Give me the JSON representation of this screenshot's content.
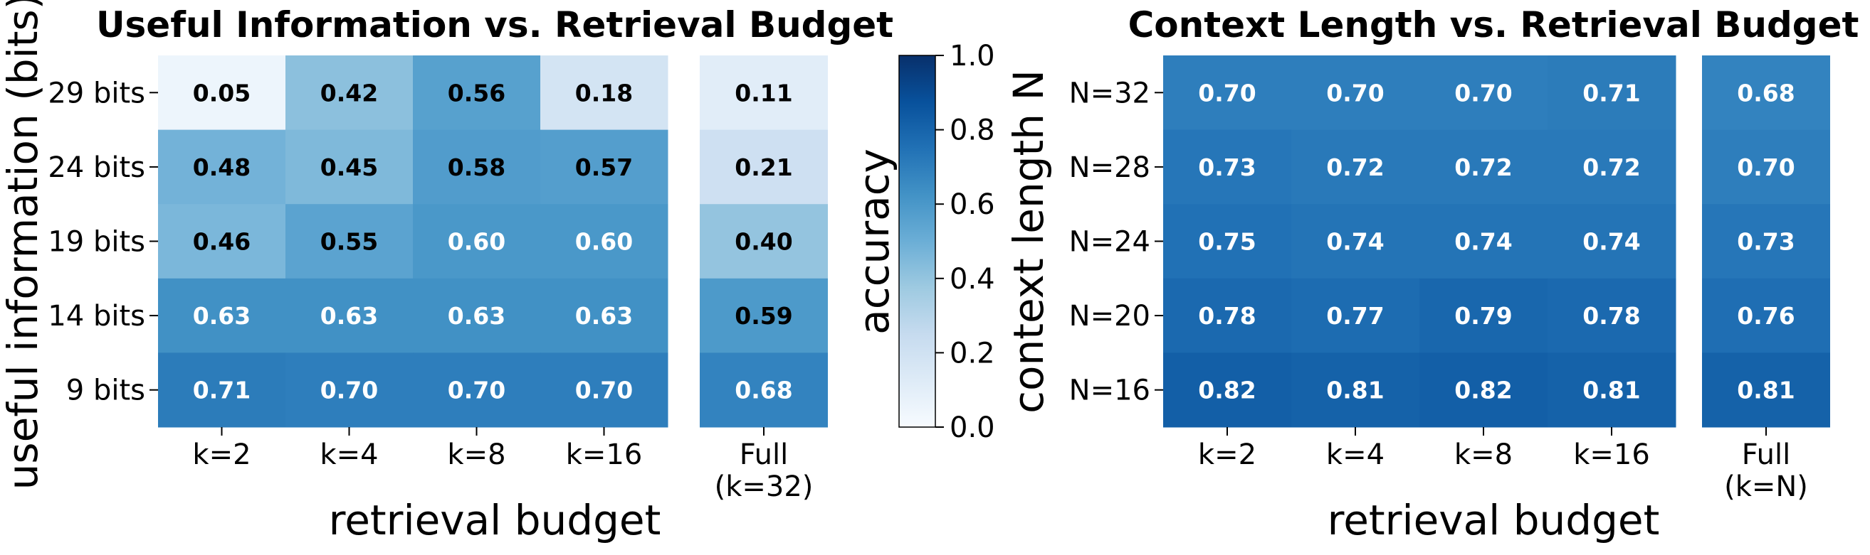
{
  "chart_data": [
    {
      "type": "heatmap",
      "title": "Useful Information vs. Retrieval Budget",
      "xlabel": "retrieval budget",
      "ylabel": "useful information (bits)",
      "rows": [
        "29 bits",
        "24 bits",
        "19 bits",
        "14 bits",
        "9 bits"
      ],
      "columns": [
        "k=2",
        "k=4",
        "k=8",
        "k=16"
      ],
      "values": [
        [
          0.05,
          0.42,
          0.56,
          0.18
        ],
        [
          0.48,
          0.45,
          0.58,
          0.57
        ],
        [
          0.46,
          0.55,
          0.6,
          0.6
        ],
        [
          0.63,
          0.63,
          0.63,
          0.63
        ],
        [
          0.71,
          0.7,
          0.7,
          0.7
        ]
      ],
      "full_column": {
        "label_line1": "Full",
        "label_line2": "(k=32)",
        "values": [
          0.11,
          0.21,
          0.4,
          0.59,
          0.68
        ]
      },
      "color_scale": "Blues",
      "vmin": 0.0,
      "vmax": 1.0
    },
    {
      "type": "heatmap",
      "title": "Context Length vs. Retrieval Budget",
      "xlabel": "retrieval budget",
      "ylabel": "context length N",
      "rows": [
        "N=32",
        "N=28",
        "N=24",
        "N=20",
        "N=16"
      ],
      "columns": [
        "k=2",
        "k=4",
        "k=8",
        "k=16"
      ],
      "values": [
        [
          0.7,
          0.7,
          0.7,
          0.71
        ],
        [
          0.73,
          0.72,
          0.72,
          0.72
        ],
        [
          0.75,
          0.74,
          0.74,
          0.74
        ],
        [
          0.78,
          0.77,
          0.79,
          0.78
        ],
        [
          0.82,
          0.81,
          0.82,
          0.81
        ]
      ],
      "full_column": {
        "label_line1": "Full",
        "label_line2": "(k=N)",
        "values": [
          0.68,
          0.7,
          0.73,
          0.76,
          0.81
        ]
      },
      "color_scale": "Blues",
      "vmin": 0.0,
      "vmax": 1.0
    }
  ],
  "colorbar": {
    "label": "accuracy",
    "ticks": [
      "0.0",
      "0.2",
      "0.4",
      "0.6",
      "0.8",
      "1.0"
    ],
    "min": 0.0,
    "max": 1.0
  }
}
